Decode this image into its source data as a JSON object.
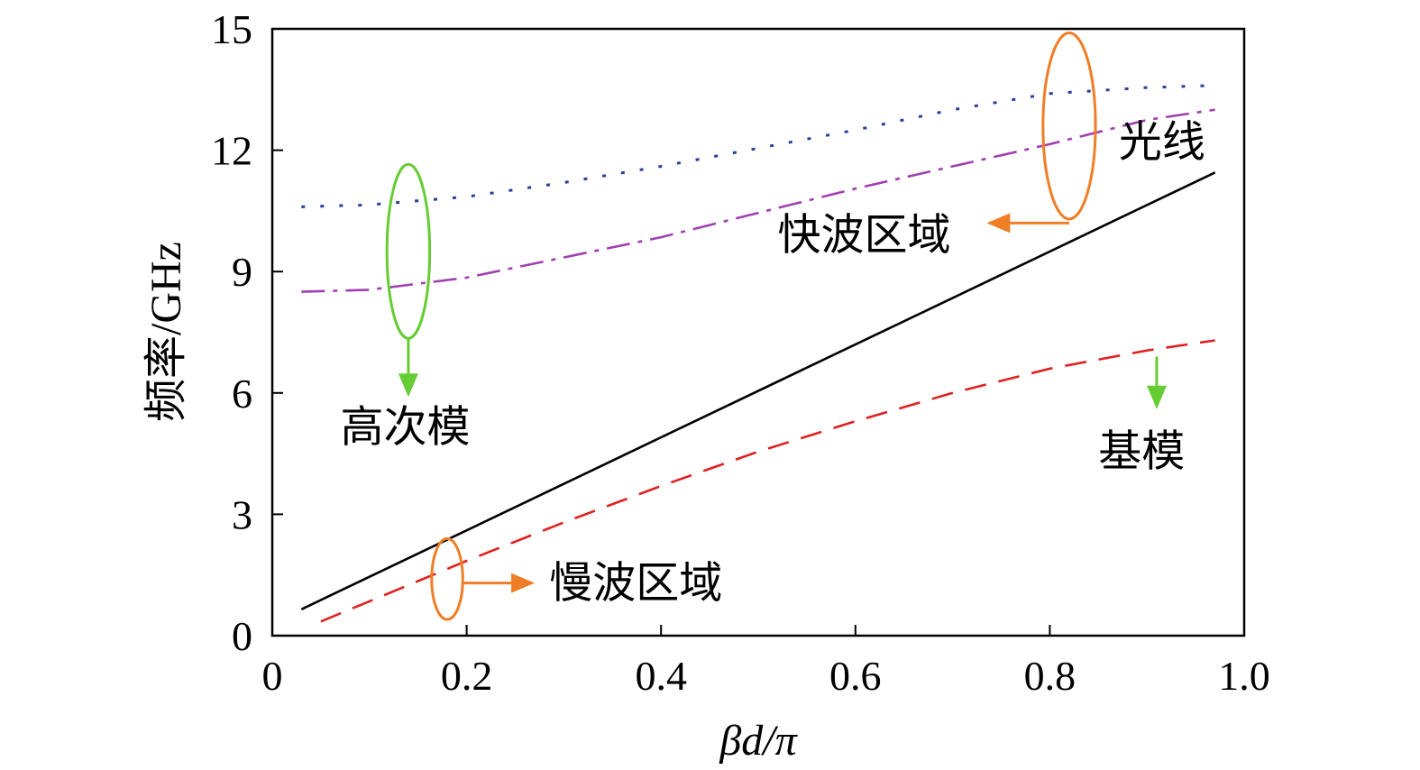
{
  "chart_data": {
    "type": "line",
    "xlabel": "βd/π",
    "ylabel": "频率/GHz",
    "xlim": [
      0,
      1.0
    ],
    "ylim": [
      0,
      15
    ],
    "xticks": [
      0,
      0.2,
      0.4,
      0.6,
      0.8,
      1.0
    ],
    "xtick_labels": [
      "0",
      "0.2",
      "0.4",
      "0.6",
      "0.8",
      "1.0"
    ],
    "yticks": [
      0,
      3,
      6,
      9,
      12,
      15
    ],
    "ytick_labels": [
      "0",
      "3",
      "6",
      "9",
      "12",
      "15"
    ],
    "grid": false,
    "series": [
      {
        "key": "light-line",
        "style": "solid",
        "color": "#000000",
        "x": [
          0.03,
          0.97
        ],
        "y": [
          0.65,
          11.45
        ]
      },
      {
        "key": "fundamental-mode",
        "style": "dashed",
        "color": "#e02020",
        "x": [
          0.05,
          0.1,
          0.2,
          0.3,
          0.4,
          0.5,
          0.6,
          0.7,
          0.8,
          0.9,
          0.97
        ],
        "y": [
          0.35,
          0.85,
          1.85,
          2.8,
          3.7,
          4.55,
          5.3,
          6.0,
          6.6,
          7.05,
          7.3
        ]
      },
      {
        "key": "higher-mode-1",
        "style": "dash-dot",
        "color": "#a040b0",
        "x": [
          0.03,
          0.1,
          0.2,
          0.3,
          0.4,
          0.5,
          0.6,
          0.7,
          0.8,
          0.9,
          0.97
        ],
        "y": [
          8.5,
          8.55,
          8.85,
          9.35,
          9.85,
          10.45,
          11.05,
          11.6,
          12.15,
          12.75,
          13.0
        ]
      },
      {
        "key": "higher-mode-2",
        "style": "dotted",
        "color": "#2a3f9a",
        "x": [
          0.03,
          0.1,
          0.2,
          0.3,
          0.4,
          0.5,
          0.6,
          0.7,
          0.8,
          0.9,
          0.97
        ],
        "y": [
          10.6,
          10.65,
          10.85,
          11.2,
          11.6,
          12.05,
          12.5,
          13.0,
          13.4,
          13.55,
          13.6
        ]
      }
    ],
    "annotations": [
      {
        "key": "light-line-label",
        "text": "光线",
        "x": 0.96,
        "y": 11.85,
        "anchor": "end"
      },
      {
        "key": "fast-wave-label",
        "text": "快波区域",
        "x": 0.52,
        "y": 9.55,
        "anchor": "start"
      },
      {
        "key": "high-order-label",
        "text": "高次模",
        "x": 0.07,
        "y": 4.8,
        "anchor": "start"
      },
      {
        "key": "fundamental-label",
        "text": "基模",
        "x": 0.85,
        "y": 4.2,
        "anchor": "start"
      },
      {
        "key": "slow-wave-label",
        "text": "慢波区域",
        "x": 0.285,
        "y": 0.95,
        "anchor": "start"
      }
    ],
    "markers": [
      {
        "key": "fast-wave-ellipse",
        "color": "#f07e26",
        "cx": 0.82,
        "cy": 12.6,
        "rx": 0.027,
        "ry": 2.3
      },
      {
        "key": "high-order-ellipse",
        "color": "#66cc33",
        "cx": 0.14,
        "cy": 9.5,
        "rx": 0.022,
        "ry": 2.15
      },
      {
        "key": "slow-wave-ellipse",
        "color": "#f07e26",
        "cx": 0.18,
        "cy": 1.4,
        "rx": 0.016,
        "ry": 1.0
      }
    ],
    "arrows": [
      {
        "key": "fast-wave-arrow",
        "color": "#f07e26",
        "from": [
          0.82,
          10.2
        ],
        "via": [
          0.82,
          10.2
        ],
        "to": [
          0.735,
          10.2
        ]
      },
      {
        "key": "high-order-arrow",
        "color": "#66cc33",
        "from": [
          0.14,
          7.35
        ],
        "to": [
          0.14,
          5.9
        ]
      },
      {
        "key": "fundamental-arrow",
        "color": "#66cc33",
        "from": [
          0.91,
          6.9
        ],
        "to": [
          0.91,
          5.6
        ]
      },
      {
        "key": "slow-wave-arrow",
        "color": "#f07e26",
        "from": [
          0.196,
          1.3
        ],
        "to": [
          0.27,
          1.3
        ]
      }
    ]
  }
}
